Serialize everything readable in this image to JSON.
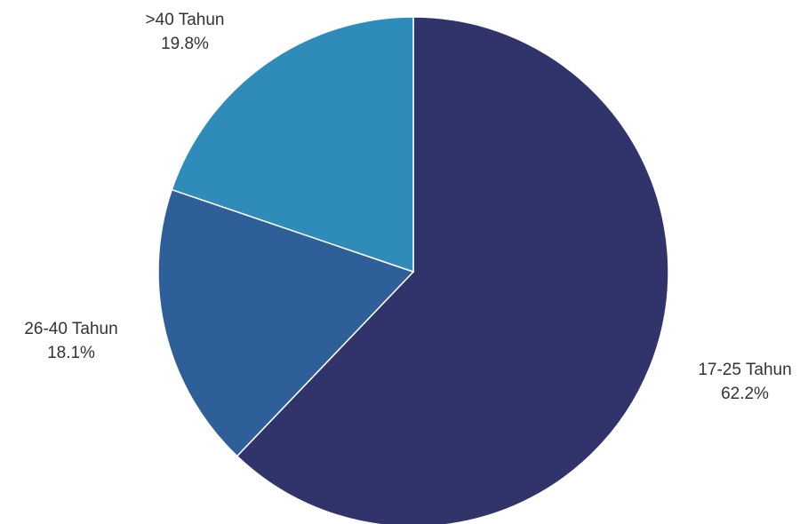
{
  "chart_data": {
    "type": "pie",
    "start_angle_deg": 0,
    "direction": "clockwise",
    "slices": [
      {
        "label": "17-25 Tahun",
        "value": 62.2,
        "value_label": "62.2%",
        "color": "#31346b"
      },
      {
        "label": "26-40 Tahun",
        "value": 18.1,
        "value_label": "18.1%",
        "color": "#2e5f99"
      },
      {
        "label": ">40 Tahun",
        "value": 19.8,
        "value_label": "19.8%",
        "color": "#2e8bba"
      }
    ]
  }
}
